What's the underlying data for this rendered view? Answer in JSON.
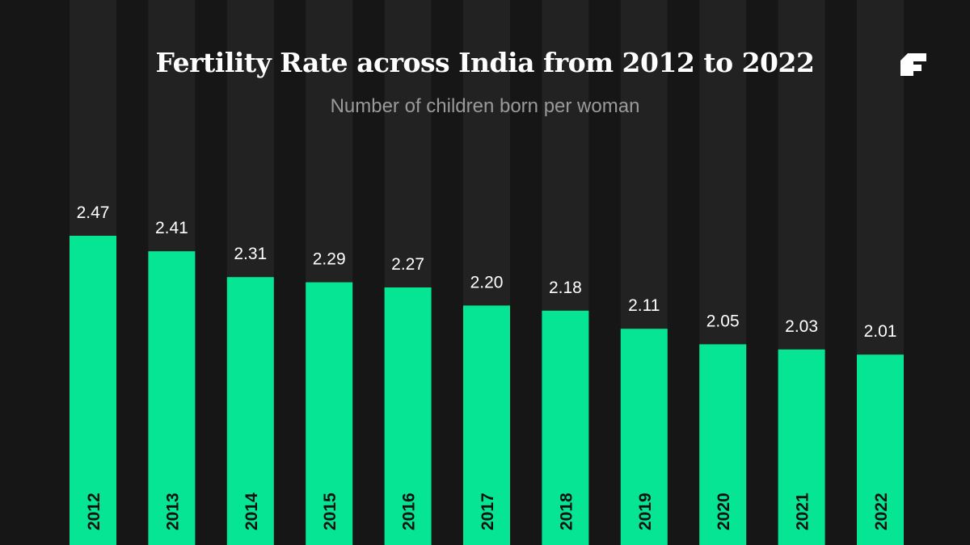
{
  "colors": {
    "background": "#161616",
    "stripe": "#222222",
    "bar": "#05e594",
    "value_text": "#ffffff",
    "year_text": "#111111",
    "title_text": "#ffffff",
    "subtitle_text": "#9a9a9a"
  },
  "brand": {
    "logo_icon": "brand-logo-icon"
  },
  "chart_data": {
    "type": "bar",
    "title": "Fertility Rate across India from 2012 to 2022",
    "subtitle": "Number of children born per woman",
    "xlabel": "",
    "ylabel": "",
    "categories": [
      "2012",
      "2013",
      "2014",
      "2015",
      "2016",
      "2017",
      "2018",
      "2019",
      "2020",
      "2021",
      "2022"
    ],
    "values": [
      2.47,
      2.41,
      2.31,
      2.29,
      2.27,
      2.2,
      2.18,
      2.11,
      2.05,
      2.03,
      2.01
    ],
    "value_labels": [
      "2.47",
      "2.41",
      "2.31",
      "2.29",
      "2.27",
      "2.20",
      "2.18",
      "2.11",
      "2.05",
      "2.03",
      "2.01"
    ],
    "grid": false,
    "legend": "none"
  }
}
